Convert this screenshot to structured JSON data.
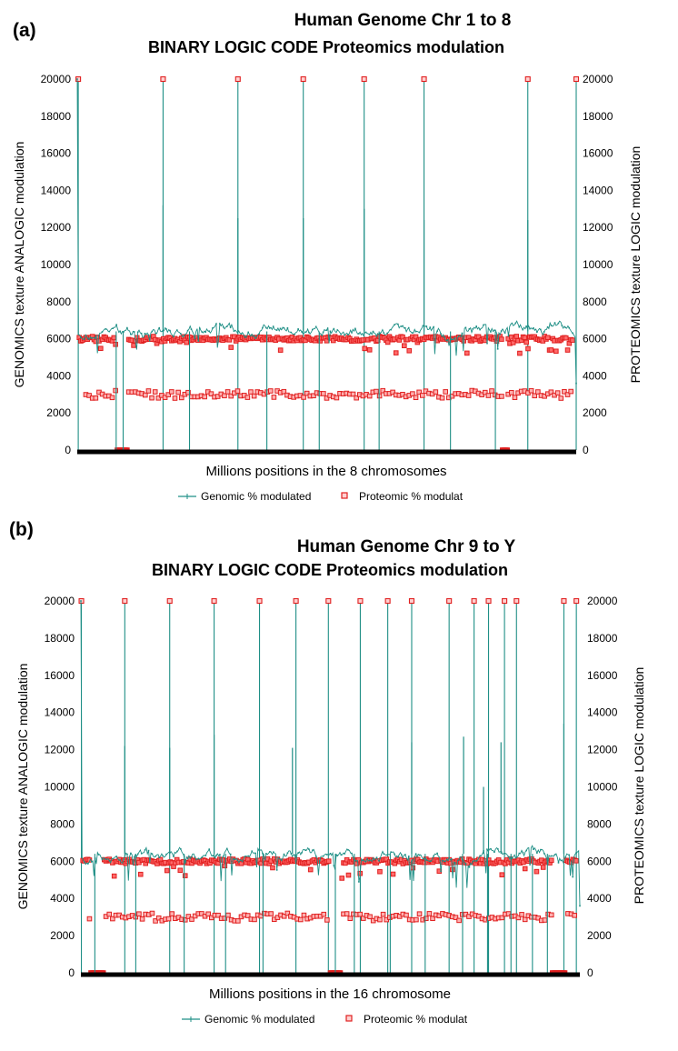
{
  "colors": {
    "genomic": "#1f8f86",
    "proteomic": "#e02020",
    "title_blue": "#10106a",
    "title_red": "#e00000",
    "panel_label": "#d42020",
    "baseline": "#000000"
  },
  "chart_data": [
    {
      "type": "line",
      "panel_label": "(a)",
      "title": "Human Genome Chr 1 to 8",
      "subtitle": "BINARY LOGIC CODE Proteomics modulation",
      "xlabel": "Millions positions in the 8 chromosomes",
      "ylabel_left": "GENOMICS texture ANALOGIC modulation",
      "ylabel_right": "PROTEOMICS texture LOGIC modulation",
      "ylim": [
        0,
        20000
      ],
      "yticks": [
        "0",
        "2000",
        "4000",
        "6000",
        "8000",
        "10000",
        "12000",
        "14000",
        "16000",
        "18000",
        "20000"
      ],
      "xlim": [
        0,
        1000
      ],
      "legend": [
        "Genomic % modulated",
        "Proteomic % modulat"
      ],
      "series_genomic": {
        "name": "Genomic % modulated",
        "baseline_level": 6400,
        "spikes": [
          {
            "x": 172,
            "peak": 13200
          },
          {
            "x": 322,
            "peak": 12500
          },
          {
            "x": 453,
            "peak": 12500
          },
          {
            "x": 575,
            "peak": 13000
          },
          {
            "x": 695,
            "peak": 12400
          },
          {
            "x": 903,
            "peak": 12400
          }
        ],
        "drops": [
          78,
          92,
          225,
          380,
          485,
          605,
          748,
          838
        ]
      },
      "series_proteomic": {
        "name": "Proteomic % modulat",
        "markers_at_20000": [
          2,
          172,
          322,
          453,
          575,
          695,
          903,
          1000
        ],
        "high_level": 6000,
        "low_level": 3000,
        "zero_runs": [
          [
            80,
            102
          ],
          [
            852,
            862
          ]
        ]
      }
    },
    {
      "type": "line",
      "panel_label": "(b)",
      "title": "Human Genome Chr 9 to Y",
      "subtitle": "BINARY LOGIC CODE Proteomics modulation",
      "xlabel": "Millions positions in the 16 chromosome",
      "ylabel_left": "GENOMICS texture ANALOGIC modulation",
      "ylabel_right": "PROTEOMICS texture LOGIC modulation",
      "ylim": [
        0,
        20000
      ],
      "yticks": [
        "0",
        "2000",
        "4000",
        "6000",
        "8000",
        "10000",
        "12000",
        "14000",
        "16000",
        "18000",
        "20000"
      ],
      "xlim": [
        0,
        1000
      ],
      "legend": [
        "Genomic % modulated",
        "Proteomic % modulat"
      ],
      "series_genomic": {
        "name": "Genomic % modulated",
        "baseline_level": 6400,
        "spikes": [
          {
            "x": 88,
            "peak": 12200
          },
          {
            "x": 178,
            "peak": 12100
          },
          {
            "x": 267,
            "peak": 12800
          },
          {
            "x": 424,
            "peak": 12100
          },
          {
            "x": 663,
            "peak": 12400
          },
          {
            "x": 767,
            "peak": 12700
          },
          {
            "x": 807,
            "peak": 10000
          },
          {
            "x": 842,
            "peak": 12400
          },
          {
            "x": 968,
            "peak": 13400
          }
        ],
        "drops": [
          28,
          110,
          207,
          290,
          365,
          510,
          548,
          620,
          690,
          765,
          815,
          862,
          905,
          935
        ]
      },
      "series_proteomic": {
        "name": "Proteomic % modulat",
        "markers_at_20000": [
          1,
          88,
          178,
          267,
          358,
          431,
          496,
          560,
          615,
          663,
          738,
          788,
          817,
          849,
          873,
          968,
          993
        ],
        "high_level": 6000,
        "low_level": 3000,
        "zero_runs": [
          [
            20,
            45
          ],
          [
            500,
            520
          ],
          [
            945,
            970
          ]
        ]
      }
    }
  ]
}
